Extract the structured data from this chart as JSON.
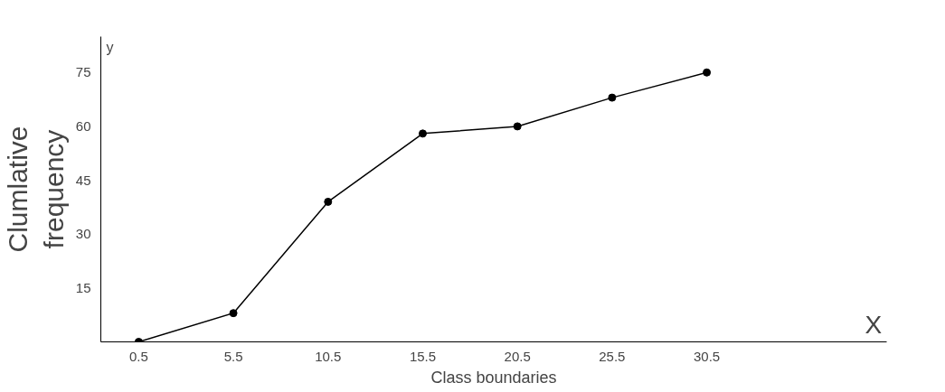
{
  "chart_data": {
    "type": "line",
    "xlabel": "Class boundaries",
    "ylabel": "Clumlative\nfrequency",
    "x": [
      0.5,
      5.5,
      10.5,
      15.5,
      20.5,
      25.5,
      30.5
    ],
    "series": [
      {
        "color": "#000000",
        "values": [
          0,
          8,
          39,
          58,
          60,
          68,
          75
        ]
      }
    ],
    "xlim": [
      -1.5,
      40
    ],
    "ylim": [
      0,
      85
    ],
    "xticks": [
      0.5,
      5.5,
      10.5,
      15.5,
      20.5,
      25.5,
      30.5
    ],
    "yticks": [
      15,
      30,
      45,
      60,
      75
    ],
    "annotations": [
      "y",
      "X"
    ],
    "marker": "circle",
    "line_style": "solid",
    "grid": false
  }
}
